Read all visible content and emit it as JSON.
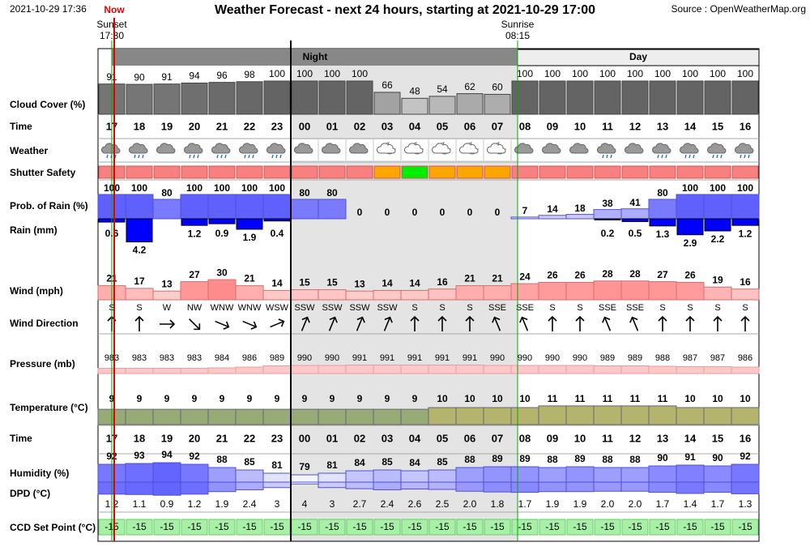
{
  "header": {
    "timestamp": "2021-10-29 17:36",
    "now": "Now",
    "title": "Weather Forecast - next 24 hours, starting at 2021-10-29 17:00",
    "source": "Source : OpenWeatherMap.org",
    "sunset_label": "Sunset",
    "sunset_time": "17:30",
    "sunrise_label": "Sunrise",
    "sunrise_time": "08:15",
    "night": "Night",
    "day": "Day"
  },
  "row_labels": [
    "Cloud Cover (%)",
    "Time",
    "Weather",
    "Shutter Safety",
    "Prob. of Rain (%)",
    "Rain (mm)",
    "Wind (mph)",
    "Wind Direction",
    "Pressure (mb)",
    "Temperature (°C)",
    "Time",
    "Humidity (%)",
    "DPD (°C)",
    "CCD Set Point (°C)"
  ],
  "hours": [
    "17",
    "18",
    "19",
    "20",
    "21",
    "22",
    "23",
    "00",
    "01",
    "02",
    "03",
    "04",
    "05",
    "06",
    "07",
    "08",
    "09",
    "10",
    "11",
    "12",
    "13",
    "14",
    "15",
    "16"
  ],
  "cloud_cover": [
    91,
    90,
    91,
    94,
    96,
    98,
    100,
    100,
    100,
    100,
    66,
    48,
    54,
    62,
    60,
    100,
    100,
    100,
    100,
    100,
    100,
    100,
    100,
    100
  ],
  "shutter_colors": [
    "#f88080",
    "#f88080",
    "#f88080",
    "#f88080",
    "#f88080",
    "#f88080",
    "#f88080",
    "#f88080",
    "#f88080",
    "#f88080",
    "#ffa500",
    "#00ee00",
    "#ffa500",
    "#ffa500",
    "#ffa500",
    "#f88080",
    "#f88080",
    "#f88080",
    "#f88080",
    "#f88080",
    "#f88080",
    "#f88080",
    "#f88080",
    "#f88080"
  ],
  "prob_rain": [
    100,
    100,
    80,
    100,
    100,
    100,
    100,
    80,
    80,
    0,
    0,
    0,
    0,
    0,
    0,
    7,
    14,
    18,
    38,
    41,
    80,
    100,
    100,
    100
  ],
  "rain_mm": [
    0.6,
    4.2,
    null,
    1.2,
    0.9,
    1.9,
    0.4,
    null,
    null,
    null,
    null,
    null,
    null,
    null,
    null,
    null,
    null,
    null,
    0.2,
    0.5,
    1.3,
    2.9,
    2.2,
    1.2
  ],
  "wind_mph": [
    21,
    17,
    13,
    27,
    30,
    21,
    14,
    15,
    15,
    13,
    14,
    14,
    16,
    21,
    21,
    24,
    26,
    26,
    28,
    28,
    27,
    26,
    19,
    16
  ],
  "wind_direction": [
    "S",
    "S",
    "W",
    "NW",
    "WNW",
    "WNW",
    "WSW",
    "SSW",
    "SSW",
    "SSW",
    "SSW",
    "S",
    "S",
    "S",
    "SSE",
    "SSE",
    "S",
    "S",
    "SSE",
    "SSE",
    "S",
    "S",
    "S",
    "S"
  ],
  "pressure_mb": [
    983,
    983,
    983,
    983,
    984,
    986,
    989,
    990,
    990,
    991,
    991,
    991,
    991,
    991,
    990,
    990,
    990,
    990,
    989,
    989,
    988,
    987,
    987,
    986
  ],
  "temperature_c": [
    9,
    9,
    9,
    9,
    9,
    9,
    9,
    9,
    9,
    9,
    9,
    9,
    10,
    10,
    10,
    10,
    11,
    11,
    11,
    11,
    11,
    10,
    10,
    10
  ],
  "humidity": [
    92,
    93,
    94,
    92,
    88,
    85,
    81,
    79,
    81,
    84,
    85,
    84,
    85,
    88,
    89,
    89,
    88,
    89,
    88,
    88,
    90,
    91,
    90,
    92
  ],
  "dpd": {
    "values": [
      1.2,
      1.1,
      0.9,
      1.2,
      1.9,
      2.4,
      3,
      4,
      3,
      2.7,
      2.4,
      2.6,
      2.5,
      2.0,
      1.8,
      1.7,
      1.9,
      1.9,
      2.0,
      2.0,
      1.7,
      1.4,
      1.7,
      1.3
    ],
    "value_labels": [
      "1.2",
      "1.1",
      "0.9",
      "1.2",
      "1.9",
      "2.4",
      "3",
      "4",
      "3",
      "2.7",
      "2.4",
      "2.6",
      "2.5",
      "2.0",
      "1.8",
      "1.7",
      "1.9",
      "1.9",
      "2.0",
      "2.0",
      "1.7",
      "1.4",
      "1.7",
      "1.3"
    ]
  },
  "ccd_set_point": [
    -15,
    -15,
    -15,
    -15,
    -15,
    -15,
    -15,
    -15,
    -15,
    -15,
    -15,
    -15,
    -15,
    -15,
    -15,
    -15,
    -15,
    -15,
    -15,
    -15,
    -15,
    -15,
    -15,
    -15
  ]
}
